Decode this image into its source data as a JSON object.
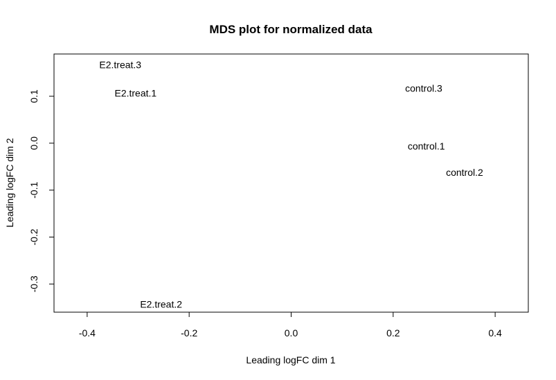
{
  "chart_data": {
    "type": "scatter",
    "title": "MDS plot for normalized data",
    "xlabel": "Leading logFC dim 1",
    "ylabel": "Leading logFC dim 2",
    "xlim": [
      -0.465,
      0.465
    ],
    "ylim": [
      -0.36,
      0.19
    ],
    "xticks": [
      -0.4,
      -0.2,
      0.0,
      0.2,
      0.4
    ],
    "xtick_labels": [
      "-0.4",
      "-0.2",
      "0.0",
      "0.2",
      "0.4"
    ],
    "yticks": [
      -0.3,
      -0.2,
      -0.1,
      0.0,
      0.1
    ],
    "ytick_labels": [
      "-0.3",
      "-0.2",
      "-0.1",
      "0.0",
      "0.1"
    ],
    "grid": false,
    "points": [
      {
        "label": "E2.treat.3",
        "x": -0.335,
        "y": 0.165
      },
      {
        "label": "E2.treat.1",
        "x": -0.305,
        "y": 0.105
      },
      {
        "label": "E2.treat.2",
        "x": -0.255,
        "y": -0.345
      },
      {
        "label": "control.3",
        "x": 0.26,
        "y": 0.115
      },
      {
        "label": "control.1",
        "x": 0.265,
        "y": -0.008
      },
      {
        "label": "control.2",
        "x": 0.34,
        "y": -0.064
      }
    ]
  }
}
